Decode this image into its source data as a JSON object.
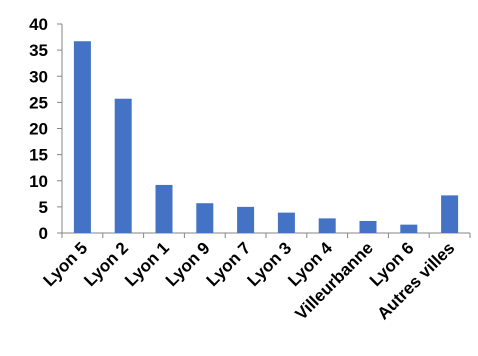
{
  "chart_data": {
    "type": "bar",
    "title": "",
    "xlabel": "",
    "ylabel": "",
    "categories": [
      "Lyon 5",
      "Lyon 2",
      "Lyon 1",
      "Lyon 9",
      "Lyon 7",
      "Lyon 3",
      "Lyon 4",
      "Villeurbanne",
      "Lyon 6",
      "Autres villes"
    ],
    "values": [
      36.7,
      25.7,
      9.2,
      5.7,
      5.0,
      3.9,
      2.8,
      2.3,
      1.6,
      7.2
    ],
    "ylim": [
      0,
      40
    ],
    "yticks": [
      "0",
      "5",
      "10",
      "15",
      "20",
      "25",
      "30",
      "35",
      "40"
    ],
    "bar_color": "#4472C4",
    "grid": false,
    "legend": "none"
  }
}
